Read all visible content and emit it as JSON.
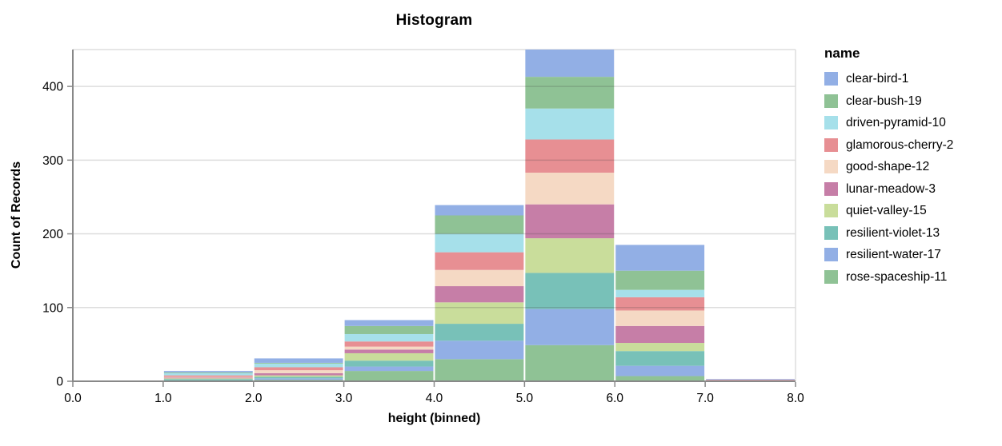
{
  "title": "Histogram",
  "colors": {
    "background": "#ffffff",
    "axis_line": "#888888",
    "tick": "#888888",
    "grid_line": "#dddddd",
    "view_border": "#dddddd",
    "text": "#000000",
    "grid_overlay_on_bars": "rgba(68,68,68,0.22)"
  },
  "chart_data": {
    "type": "bar",
    "subtype": "stacked-histogram",
    "title": "Histogram",
    "xlabel": "height (binned)",
    "ylabel": "Count of Records",
    "legend_title": "name",
    "legend_position": "right",
    "grid": true,
    "xlim": [
      0,
      8
    ],
    "ylim": [
      0,
      450
    ],
    "bin_width": 1,
    "bin_edges": [
      0,
      1,
      2,
      3,
      4,
      5,
      6,
      7,
      8
    ],
    "x_ticks": [
      0,
      1,
      2,
      3,
      4,
      5,
      6,
      7,
      8
    ],
    "x_tick_labels": [
      "0.0",
      "1.0",
      "2.0",
      "3.0",
      "4.0",
      "5.0",
      "6.0",
      "7.0",
      "8.0"
    ],
    "y_ticks": [
      0,
      100,
      200,
      300,
      400
    ],
    "y_tick_labels": [
      "0",
      "100",
      "200",
      "300",
      "400"
    ],
    "bin_totals": [
      1,
      14,
      31,
      83,
      239,
      450,
      185,
      3
    ],
    "stack_order": "first-legend-series-on-top",
    "series": [
      {
        "name": "clear-bird-1",
        "color": "#92afe5",
        "values": [
          0,
          2,
          6,
          8,
          14,
          37,
          35,
          1
        ]
      },
      {
        "name": "clear-bush-19",
        "color": "#8fc295",
        "values": [
          0,
          1,
          1,
          11,
          25,
          43,
          26,
          0
        ]
      },
      {
        "name": "driven-pyramid-10",
        "color": "#a6e0ea",
        "values": [
          0,
          3,
          5,
          10,
          25,
          42,
          10,
          0
        ]
      },
      {
        "name": "glamorous-cherry-2",
        "color": "#e78f93",
        "values": [
          0,
          2,
          4,
          7,
          24,
          45,
          18,
          1
        ]
      },
      {
        "name": "good-shape-12",
        "color": "#f5d9c4",
        "values": [
          0,
          1,
          4,
          4,
          22,
          43,
          21,
          0
        ]
      },
      {
        "name": "lunar-meadow-3",
        "color": "#c67ea7",
        "values": [
          0,
          1,
          3,
          5,
          22,
          46,
          23,
          1
        ]
      },
      {
        "name": "quiet-valley-15",
        "color": "#c9dd9b",
        "values": [
          1,
          1,
          2,
          10,
          29,
          47,
          11,
          0
        ]
      },
      {
        "name": "resilient-violet-13",
        "color": "#78c1b8",
        "values": [
          0,
          2,
          2,
          8,
          23,
          49,
          20,
          0
        ]
      },
      {
        "name": "resilient-water-17",
        "color": "#92afe5",
        "values": [
          0,
          0,
          2,
          6,
          25,
          49,
          14,
          0
        ]
      },
      {
        "name": "rose-spaceship-11",
        "color": "#8fc295",
        "values": [
          0,
          1,
          2,
          14,
          30,
          49,
          7,
          0
        ]
      }
    ]
  }
}
